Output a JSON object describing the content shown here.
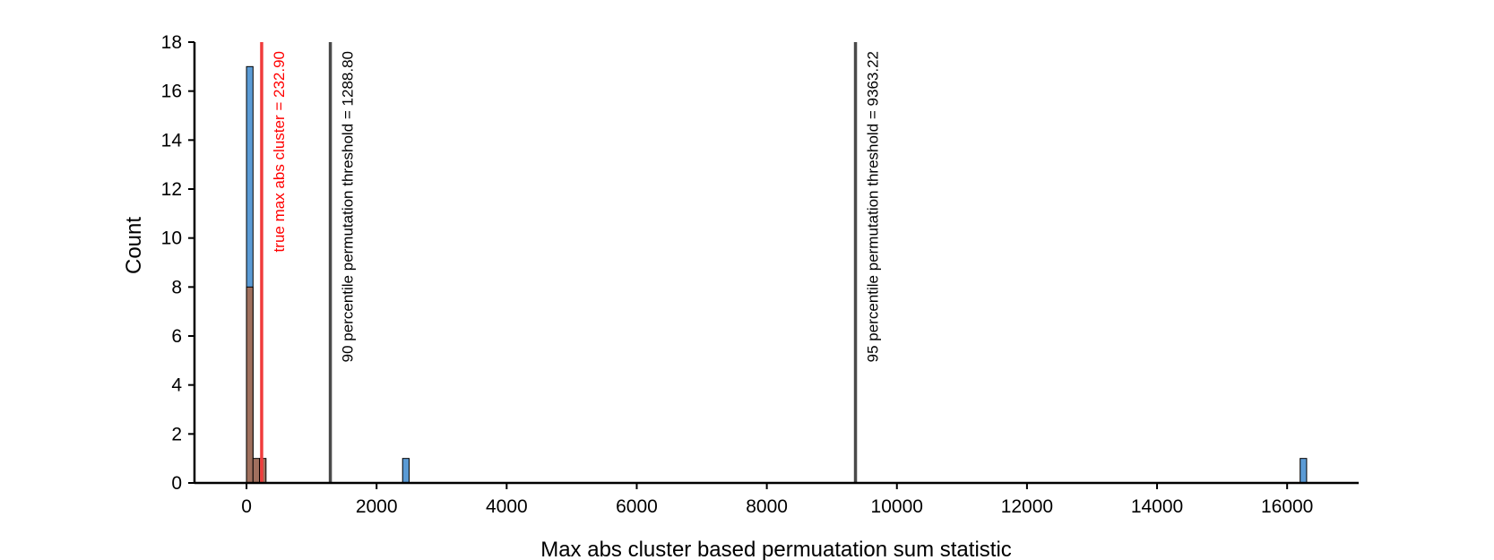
{
  "chart_data": {
    "type": "bar",
    "xlabel": "Max abs cluster based permuatation sum statistic",
    "ylabel": "Count",
    "xlim": [
      -800,
      17100
    ],
    "ylim": [
      0,
      18
    ],
    "x_ticks": [
      0,
      2000,
      4000,
      6000,
      8000,
      10000,
      12000,
      14000,
      16000
    ],
    "y_ticks": [
      0,
      2,
      4,
      6,
      8,
      10,
      12,
      14,
      16,
      18
    ],
    "grid": false,
    "series": [
      {
        "color": "#5b9bd5",
        "bins": [
          {
            "x0": 0,
            "x1": 100,
            "count": 17
          },
          {
            "x0": 2400,
            "x1": 2500,
            "count": 1
          },
          {
            "x0": 16200,
            "x1": 16300,
            "count": 1
          }
        ]
      },
      {
        "color": "#a0705e",
        "bins": [
          {
            "x0": 0,
            "x1": 100,
            "count": 8
          },
          {
            "x0": 100,
            "x1": 200,
            "count": 1
          },
          {
            "x0": 200,
            "x1": 300,
            "count": 1
          }
        ]
      }
    ],
    "reference_lines": [
      {
        "x": 232.9,
        "label": "true max abs cluster = 232.90",
        "color": "#f03c3c"
      },
      {
        "x": 1288.8,
        "label": "90 percentile permutation threshold = 1288.80",
        "color": "#4a4a4a"
      },
      {
        "x": 9363.22,
        "label": "95 percentile permutation threshold = 9363.22",
        "color": "#4a4a4a"
      }
    ]
  }
}
